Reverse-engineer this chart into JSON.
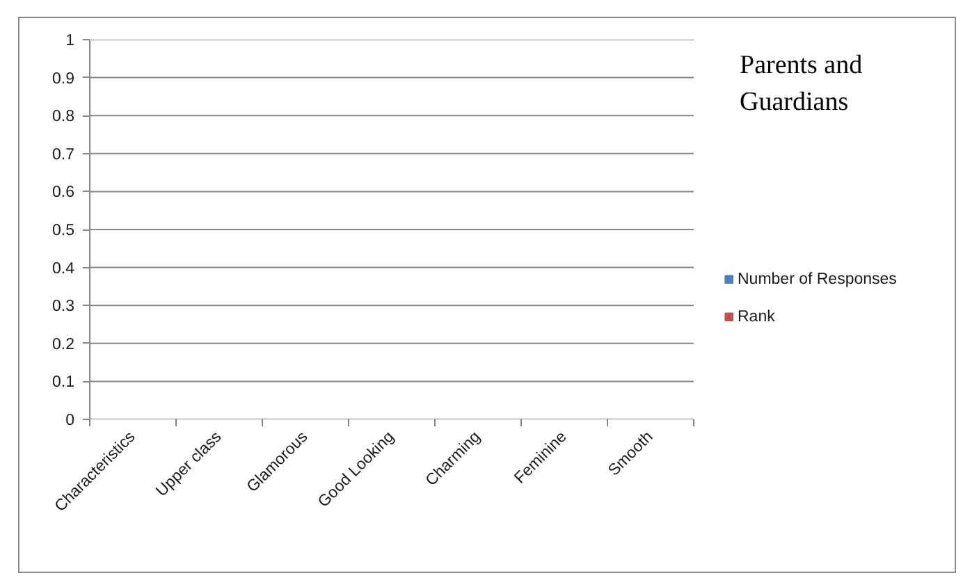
{
  "chart_data": {
    "type": "bar",
    "title": "Parents and Guardians",
    "categories": [
      "Characteristics",
      "Upper class",
      "Glamorous",
      "Good Looking",
      "Charming",
      "Feminine",
      "Smooth"
    ],
    "series": [
      {
        "name": "Number of Responses",
        "color": "#4f81bd",
        "values": [
          null,
          null,
          null,
          null,
          null,
          null,
          null
        ]
      },
      {
        "name": "Rank",
        "color": "#c0504d",
        "values": [
          null,
          null,
          null,
          null,
          null,
          null,
          null
        ]
      }
    ],
    "ylim": [
      0,
      1
    ],
    "yticks": [
      0,
      0.1,
      0.2,
      0.3,
      0.4,
      0.5,
      0.6,
      0.7,
      0.8,
      0.9,
      1
    ],
    "grid": "y",
    "legend": "right"
  }
}
